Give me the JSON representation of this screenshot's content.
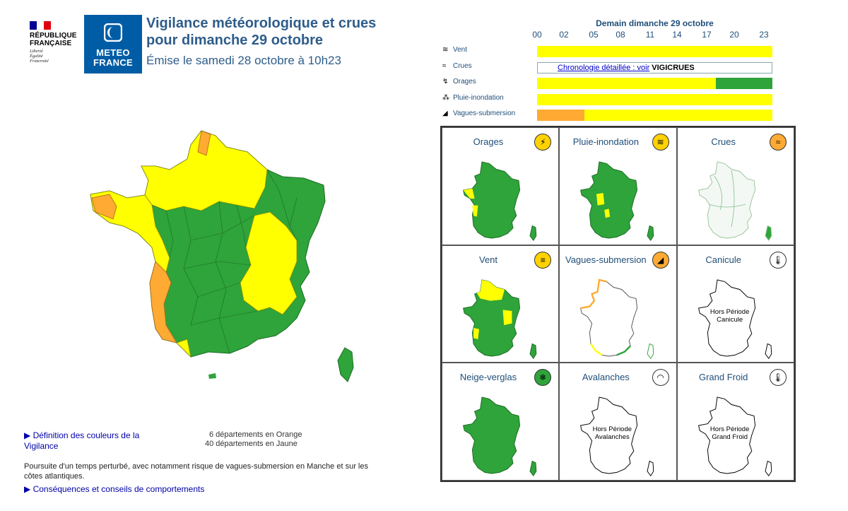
{
  "header": {
    "republique_line1": "RÉPUBLIQUE",
    "republique_line2": "FRANÇAISE",
    "motto_1": "Liberté",
    "motto_2": "Égalité",
    "motto_3": "Fraternité",
    "mf_line1": "METEO",
    "mf_line2": "FRANCE",
    "title_line1": "Vigilance météorologique et crues",
    "title_line2": "pour dimanche 29 octobre",
    "emission": "Émise le samedi 28 octobre à 10h23"
  },
  "timeline": {
    "title": "Demain dimanche 29 octobre",
    "hours": [
      "00",
      "02",
      "05",
      "08",
      "11",
      "14",
      "17",
      "20",
      "23"
    ],
    "rows": [
      {
        "label": "Vent",
        "icon": "wind-icon",
        "segments": [
          {
            "color": "#FFFF00",
            "fraction": 1.0
          }
        ]
      },
      {
        "label": "Crues",
        "icon": "waves-icon",
        "link_text": "Chronologie détaillée : voir",
        "vigicrues": "VIGICRUES"
      },
      {
        "label": "Orages",
        "icon": "lightning-icon",
        "segments": [
          {
            "color": "#FFFF00",
            "fraction": 0.76
          },
          {
            "color": "#2EA43A",
            "fraction": 0.24
          }
        ]
      },
      {
        "label": "Pluie-inondation",
        "icon": "rain-flood-icon",
        "segments": [
          {
            "color": "#FFFF00",
            "fraction": 1.0
          }
        ]
      },
      {
        "label": "Vagues-submersion",
        "icon": "wave-submersion-icon",
        "segments": [
          {
            "color": "#FFAA33",
            "fraction": 0.2
          },
          {
            "color": "#FFFF00",
            "fraction": 0.8
          }
        ]
      }
    ]
  },
  "legend": {
    "definition_link": "▶ Définition des couleurs de la Vigilance",
    "count_orange": "6 départements en Orange",
    "count_yellow": "40 départements en Jaune",
    "comment": "Poursuite d'un temps perturbé, avec notamment risque de vagues-submersion en Manche et sur les côtes atlantiques.",
    "consequences_link": "▶ Conséquences et conseils de comportements"
  },
  "grid": [
    {
      "title": "Orages",
      "badge_color": "#FFD200",
      "badge_icon": "⚡",
      "map": "green-west-yellow"
    },
    {
      "title": "Pluie-inondation",
      "badge_color": "#FFD200",
      "badge_icon": "≋",
      "map": "green-center-yellow"
    },
    {
      "title": "Crues",
      "badge_color": "#FFAA33",
      "badge_icon": "≈",
      "map": "crues"
    },
    {
      "title": "Vent",
      "badge_color": "#FFD200",
      "badge_icon": "≡",
      "map": "green-north-yellow"
    },
    {
      "title": "Vagues-submersion",
      "badge_color": "#FFAA33",
      "badge_icon": "◢",
      "map": "white-coast"
    },
    {
      "title": "Canicule",
      "badge_color": "#FFFFFF",
      "badge_icon": "🌡",
      "map": "outline",
      "period_1": "Hors Période",
      "period_2": "Canicule"
    },
    {
      "title": "Neige-verglas",
      "badge_color": "#2EA43A",
      "badge_icon": "❄",
      "map": "all-green"
    },
    {
      "title": "Avalanches",
      "badge_color": "#FFFFFF",
      "badge_icon": "◠",
      "map": "outline",
      "period_1": "Hors Période",
      "period_2": "Avalanches"
    },
    {
      "title": "Grand Froid",
      "badge_color": "#FFFFFF",
      "badge_icon": "🌡",
      "map": "outline",
      "period_1": "Hors Période",
      "period_2": "Grand Froid"
    }
  ],
  "colors": {
    "green": "#2EA43A",
    "yellow": "#FFFF00",
    "orange": "#FFAA33",
    "title_blue": "#2e5d8b",
    "mf_blue": "#005DA5"
  }
}
